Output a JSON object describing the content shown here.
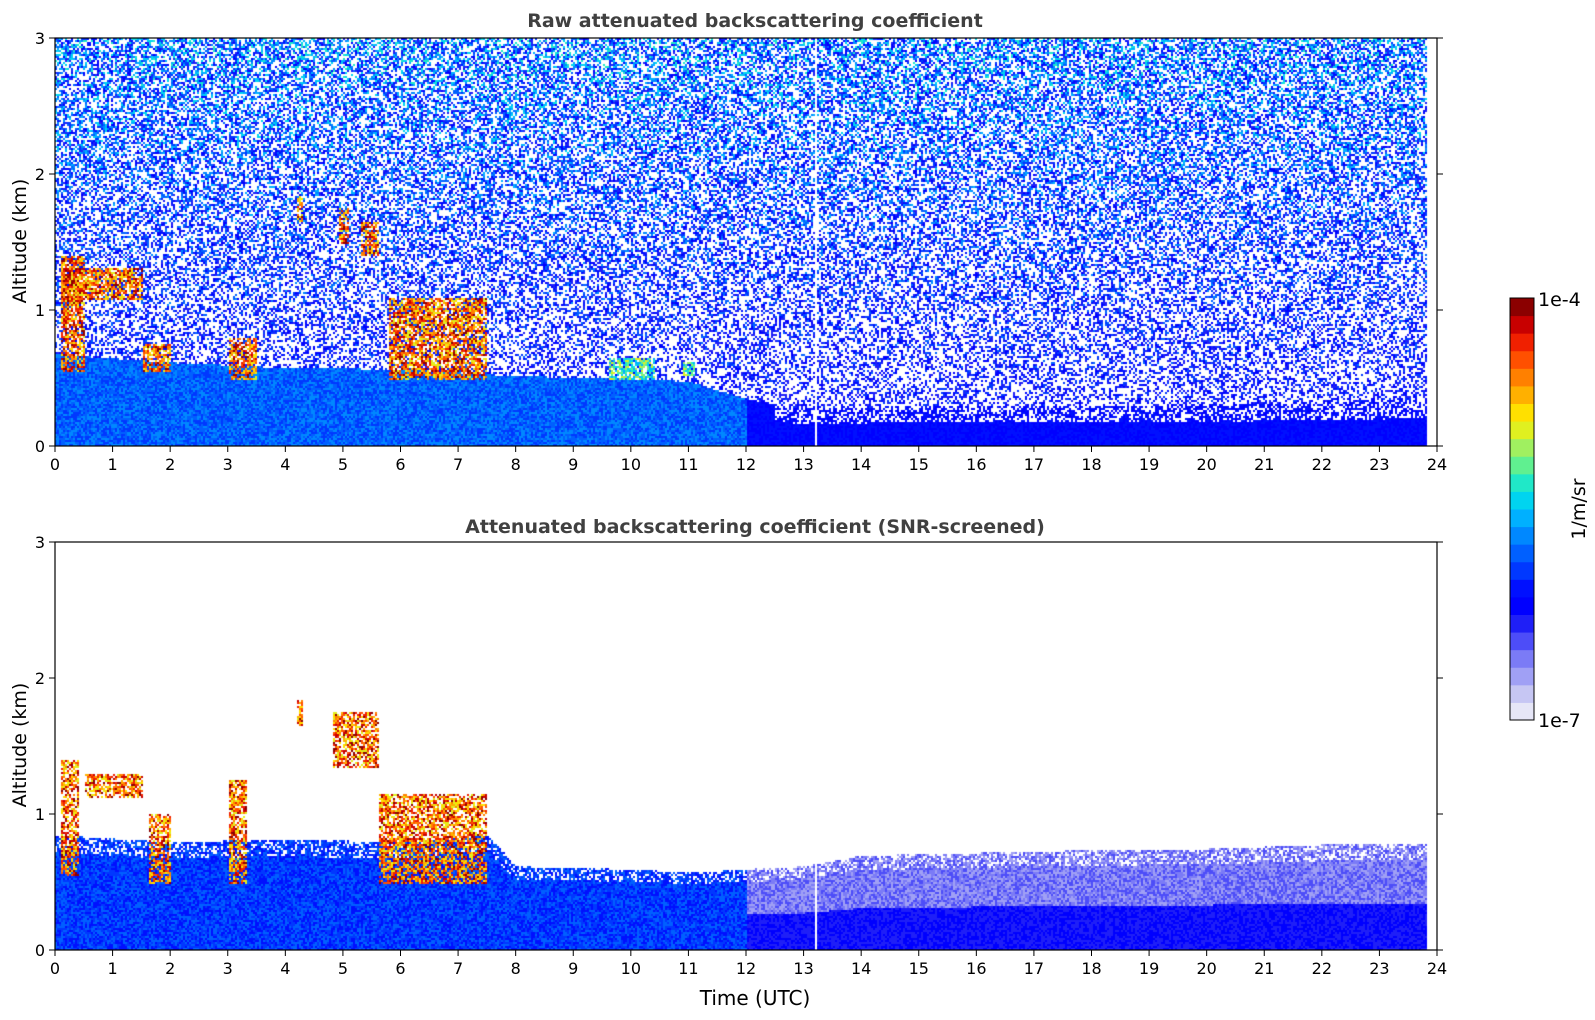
{
  "figure": {
    "xlabel": "Time (UTC)"
  },
  "panels": [
    {
      "title": "Raw attenuated backscattering coefficient",
      "ylabel": "Altitude (km)"
    },
    {
      "title": "Attenuated backscattering coefficient (SNR-screened)",
      "ylabel": "Altitude (km)"
    }
  ],
  "colorbar": {
    "label": "1/m/sr",
    "max_label": "1e-4",
    "min_label": "1e-7",
    "colors": [
      "#e6e6f7",
      "#c6c6f3",
      "#a0a0f5",
      "#7b7bf6",
      "#4d4df8",
      "#1f1ff7",
      "#0000ff",
      "#0010ff",
      "#0038ff",
      "#0060ff",
      "#0088ff",
      "#00b0ff",
      "#00d4f0",
      "#20e8c8",
      "#60f090",
      "#a0f060",
      "#e0f020",
      "#ffe000",
      "#ffb000",
      "#ff8000",
      "#ff5000",
      "#f02000",
      "#c80000",
      "#8b0000"
    ]
  },
  "chart_data": [
    {
      "type": "heatmap",
      "title": "Raw attenuated backscattering coefficient",
      "xlabel": "",
      "ylabel": "Altitude (km)",
      "xlim": [
        0,
        24
      ],
      "ylim": [
        0,
        3
      ],
      "xticks": [
        "0",
        "1",
        "2",
        "3",
        "4",
        "5",
        "6",
        "7",
        "8",
        "9",
        "10",
        "11",
        "12",
        "13",
        "14",
        "15",
        "16",
        "17",
        "18",
        "19",
        "20",
        "21",
        "22",
        "23",
        "24"
      ],
      "yticks": [
        "0",
        "1",
        "2",
        "3"
      ],
      "color_scale": "log",
      "clim": [
        1e-07,
        0.0001
      ],
      "data_end_time": 23.8,
      "boundary_layer_top_km": [
        [
          0,
          0.68
        ],
        [
          2,
          0.62
        ],
        [
          4,
          0.58
        ],
        [
          6,
          0.57
        ],
        [
          8,
          0.52
        ],
        [
          10,
          0.5
        ],
        [
          11,
          0.48
        ],
        [
          12,
          0.35
        ],
        [
          13,
          0.28
        ],
        [
          15,
          0.3
        ],
        [
          18,
          0.3
        ],
        [
          21,
          0.32
        ],
        [
          23.8,
          0.35
        ]
      ],
      "clouds": [
        {
          "t0": 0.1,
          "t1": 1.5,
          "z0": 1.08,
          "z1": 1.32,
          "level": "high"
        },
        {
          "t0": 0.1,
          "t1": 0.5,
          "z0": 0.55,
          "z1": 1.4,
          "level": "high"
        },
        {
          "t0": 1.5,
          "t1": 2.0,
          "z0": 0.55,
          "z1": 0.75,
          "level": "high"
        },
        {
          "t0": 3.0,
          "t1": 3.5,
          "z0": 0.5,
          "z1": 0.8,
          "level": "high"
        },
        {
          "t0": 4.2,
          "t1": 4.3,
          "z0": 1.65,
          "z1": 1.85,
          "level": "high"
        },
        {
          "t0": 4.9,
          "t1": 5.1,
          "z0": 1.5,
          "z1": 1.75,
          "level": "high"
        },
        {
          "t0": 5.3,
          "t1": 5.6,
          "z0": 1.4,
          "z1": 1.65,
          "level": "high"
        },
        {
          "t0": 5.8,
          "t1": 7.5,
          "z0": 0.5,
          "z1": 1.1,
          "level": "high"
        },
        {
          "t0": 9.6,
          "t1": 10.4,
          "z0": 0.5,
          "z1": 0.65,
          "level": "mid"
        },
        {
          "t0": 10.9,
          "t1": 11.1,
          "z0": 0.52,
          "z1": 0.62,
          "level": "mid"
        }
      ],
      "data_gap_time": 13.2
    },
    {
      "type": "heatmap",
      "title": "Attenuated backscattering coefficient (SNR-screened)",
      "xlabel": "Time (UTC)",
      "ylabel": "Altitude (km)",
      "xlim": [
        0,
        24
      ],
      "ylim": [
        0,
        3
      ],
      "xticks": [
        "0",
        "1",
        "2",
        "3",
        "4",
        "5",
        "6",
        "7",
        "8",
        "9",
        "10",
        "11",
        "12",
        "13",
        "14",
        "15",
        "16",
        "17",
        "18",
        "19",
        "20",
        "21",
        "22",
        "23",
        "24"
      ],
      "yticks": [
        "0",
        "1",
        "2",
        "3"
      ],
      "color_scale": "log",
      "clim": [
        1e-07,
        0.0001
      ],
      "data_end_time": 23.8,
      "screened_top_km": [
        [
          0,
          0.85
        ],
        [
          2,
          0.8
        ],
        [
          4,
          0.82
        ],
        [
          6,
          0.8
        ],
        [
          7.5,
          0.85
        ],
        [
          8,
          0.62
        ],
        [
          10,
          0.6
        ],
        [
          11,
          0.58
        ],
        [
          12,
          0.6
        ],
        [
          13,
          0.62
        ],
        [
          14,
          0.7
        ],
        [
          16,
          0.72
        ],
        [
          18,
          0.74
        ],
        [
          20,
          0.75
        ],
        [
          22,
          0.78
        ],
        [
          23.8,
          0.78
        ]
      ],
      "clouds": [
        {
          "t0": 0.5,
          "t1": 1.5,
          "z0": 1.12,
          "z1": 1.3,
          "level": "high"
        },
        {
          "t0": 0.1,
          "t1": 0.4,
          "z0": 0.55,
          "z1": 1.4,
          "level": "high"
        },
        {
          "t0": 1.6,
          "t1": 2.0,
          "z0": 0.5,
          "z1": 1.0,
          "level": "high"
        },
        {
          "t0": 3.0,
          "t1": 3.3,
          "z0": 0.5,
          "z1": 1.25,
          "level": "high"
        },
        {
          "t0": 4.2,
          "t1": 4.3,
          "z0": 1.65,
          "z1": 1.85,
          "level": "high"
        },
        {
          "t0": 4.8,
          "t1": 5.6,
          "z0": 1.35,
          "z1": 1.75,
          "level": "high"
        },
        {
          "t0": 5.6,
          "t1": 7.5,
          "z0": 0.5,
          "z1": 1.15,
          "level": "high"
        }
      ],
      "data_gap_time": 13.2
    }
  ]
}
